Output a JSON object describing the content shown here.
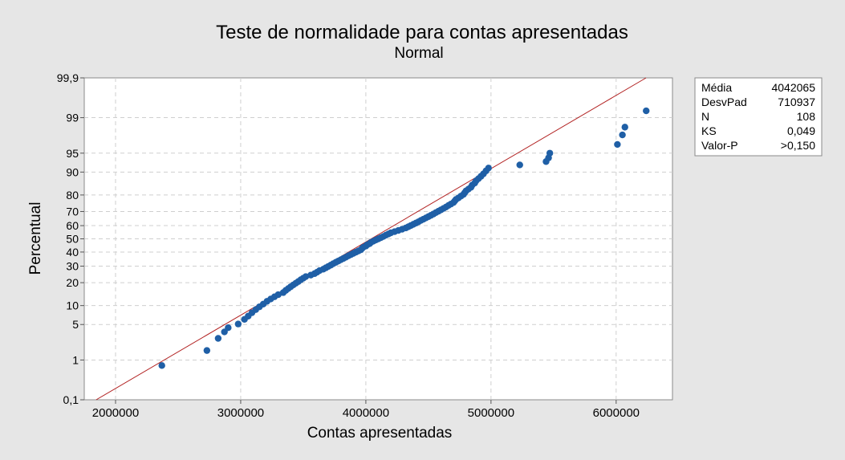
{
  "chart_data": {
    "type": "scatter",
    "title": "Teste de normalidade para contas apresentadas",
    "subtitle": "Normal",
    "xlabel": "Contas apresentadas",
    "ylabel": "Percentual",
    "xlim": [
      1750000,
      6450000
    ],
    "x_ticks": [
      2000000,
      3000000,
      4000000,
      5000000,
      6000000
    ],
    "x_tick_labels": [
      "2000000",
      "3000000",
      "4000000",
      "5000000",
      "6000000"
    ],
    "y_scale": "normal-probability",
    "y_ticks": [
      0.1,
      1,
      5,
      10,
      20,
      30,
      40,
      50,
      60,
      70,
      80,
      90,
      95,
      99,
      99.9
    ],
    "y_tick_labels": [
      "0,1",
      "1",
      "5",
      "10",
      "20",
      "30",
      "40",
      "50",
      "60",
      "70",
      "80",
      "90",
      "95",
      "99",
      "99,9"
    ],
    "grid": true,
    "fit_line": {
      "mean": 4042065,
      "sd": 710937,
      "color": "#b22222"
    },
    "point_color": "#1f5fa6",
    "points": [
      [
        2370000,
        0.75
      ],
      [
        2730000,
        1.6
      ],
      [
        2820000,
        2.8
      ],
      [
        2870000,
        3.7
      ],
      [
        2900000,
        4.4
      ],
      [
        2980000,
        5.1
      ],
      [
        3030000,
        6.1
      ],
      [
        3060000,
        6.9
      ],
      [
        3090000,
        7.8
      ],
      [
        3120000,
        8.7
      ],
      [
        3150000,
        9.6
      ],
      [
        3180000,
        10.5
      ],
      [
        3210000,
        11.5
      ],
      [
        3240000,
        12.4
      ],
      [
        3270000,
        13.3
      ],
      [
        3300000,
        14.2
      ],
      [
        3340000,
        15.1
      ],
      [
        3360000,
        16.1
      ],
      [
        3380000,
        17.0
      ],
      [
        3400000,
        17.9
      ],
      [
        3420000,
        18.8
      ],
      [
        3440000,
        19.7
      ],
      [
        3460000,
        20.6
      ],
      [
        3480000,
        21.6
      ],
      [
        3500000,
        22.5
      ],
      [
        3520000,
        23.4
      ],
      [
        3560000,
        24.3
      ],
      [
        3590000,
        25.2
      ],
      [
        3610000,
        26.1
      ],
      [
        3630000,
        27.1
      ],
      [
        3660000,
        28.0
      ],
      [
        3680000,
        28.9
      ],
      [
        3700000,
        29.8
      ],
      [
        3720000,
        30.7
      ],
      [
        3740000,
        31.7
      ],
      [
        3760000,
        32.6
      ],
      [
        3780000,
        33.5
      ],
      [
        3800000,
        34.4
      ],
      [
        3820000,
        35.3
      ],
      [
        3840000,
        36.2
      ],
      [
        3860000,
        37.2
      ],
      [
        3880000,
        38.1
      ],
      [
        3900000,
        39.0
      ],
      [
        3920000,
        39.9
      ],
      [
        3940000,
        40.8
      ],
      [
        3960000,
        41.7
      ],
      [
        3970000,
        42.7
      ],
      [
        3980000,
        43.6
      ],
      [
        4000000,
        44.5
      ],
      [
        4010000,
        45.4
      ],
      [
        4030000,
        46.3
      ],
      [
        4040000,
        47.2
      ],
      [
        4060000,
        48.2
      ],
      [
        4080000,
        49.1
      ],
      [
        4100000,
        50.0
      ],
      [
        4120000,
        50.9
      ],
      [
        4140000,
        51.8
      ],
      [
        4160000,
        52.8
      ],
      [
        4180000,
        53.7
      ],
      [
        4200000,
        54.6
      ],
      [
        4230000,
        55.5
      ],
      [
        4260000,
        56.4
      ],
      [
        4290000,
        57.3
      ],
      [
        4320000,
        58.3
      ],
      [
        4340000,
        59.2
      ],
      [
        4360000,
        60.1
      ],
      [
        4380000,
        61.0
      ],
      [
        4400000,
        61.9
      ],
      [
        4420000,
        62.8
      ],
      [
        4440000,
        63.8
      ],
      [
        4460000,
        64.7
      ],
      [
        4480000,
        65.6
      ],
      [
        4500000,
        66.5
      ],
      [
        4520000,
        67.4
      ],
      [
        4540000,
        68.3
      ],
      [
        4560000,
        69.3
      ],
      [
        4580000,
        70.2
      ],
      [
        4600000,
        71.1
      ],
      [
        4620000,
        72.0
      ],
      [
        4640000,
        72.9
      ],
      [
        4660000,
        73.9
      ],
      [
        4680000,
        74.8
      ],
      [
        4700000,
        75.7
      ],
      [
        4710000,
        76.6
      ],
      [
        4720000,
        77.5
      ],
      [
        4740000,
        78.4
      ],
      [
        4760000,
        79.4
      ],
      [
        4780000,
        80.3
      ],
      [
        4790000,
        81.2
      ],
      [
        4800000,
        82.1
      ],
      [
        4820000,
        83.0
      ],
      [
        4840000,
        83.9
      ],
      [
        4850000,
        84.9
      ],
      [
        4870000,
        85.8
      ],
      [
        4880000,
        86.7
      ],
      [
        4900000,
        87.6
      ],
      [
        4920000,
        88.5
      ],
      [
        4940000,
        89.4
      ],
      [
        4960000,
        90.4
      ],
      [
        4980000,
        91.3
      ],
      [
        5230000,
        92.2
      ],
      [
        5440000,
        93.1
      ],
      [
        5460000,
        94.0
      ],
      [
        5470000,
        95.0
      ],
      [
        6010000,
        96.5
      ],
      [
        6050000,
        97.7
      ],
      [
        6070000,
        98.4
      ],
      [
        6240000,
        99.3
      ]
    ]
  },
  "stats_box": {
    "rows": [
      {
        "label": "Média",
        "value": "4042065"
      },
      {
        "label": "DesvPad",
        "value": "710937"
      },
      {
        "label": "N",
        "value": "108"
      },
      {
        "label": "KS",
        "value": "0,049"
      },
      {
        "label": "Valor-P",
        "value": ">0,150"
      }
    ]
  }
}
